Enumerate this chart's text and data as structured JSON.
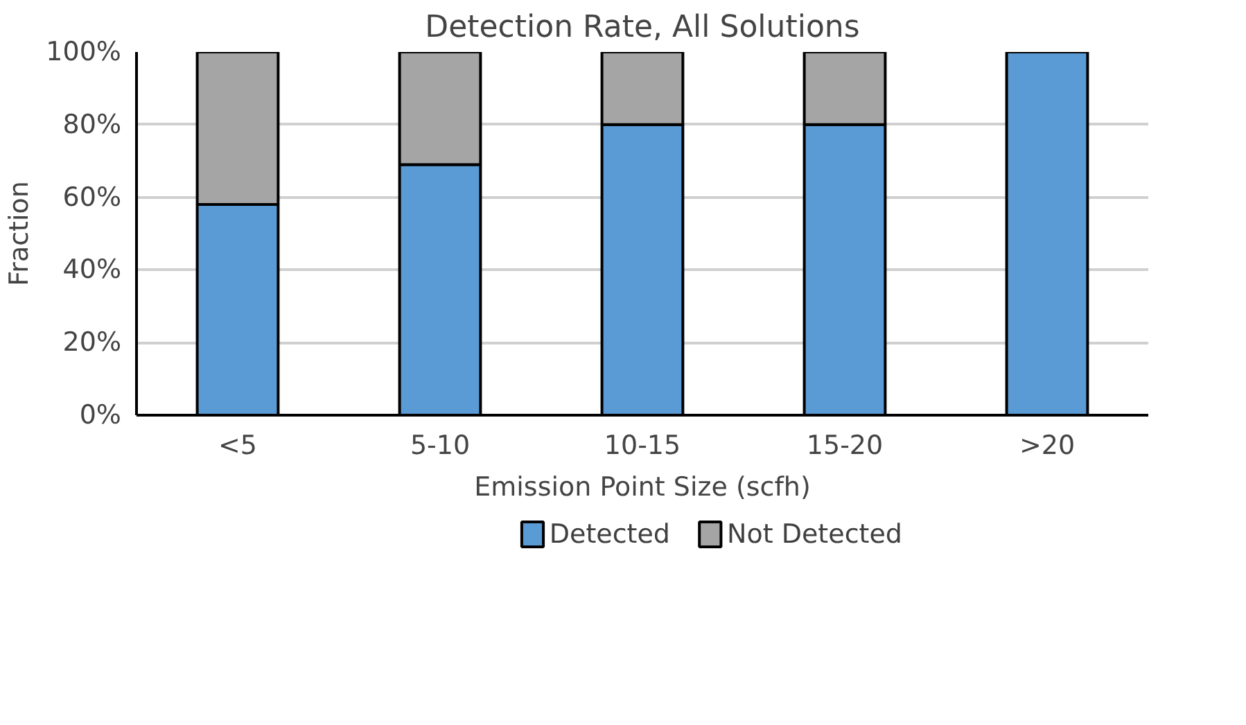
{
  "chart_data": {
    "type": "bar",
    "title": "Detection Rate, All Solutions",
    "xlabel": "Emission Point Size (scfh)",
    "ylabel": "Fraction",
    "categories": [
      "<5",
      "5-10",
      "10-15",
      "15-20",
      ">20"
    ],
    "stacked": true,
    "series": [
      {
        "name": "Detected",
        "color": "#5b9bd5",
        "values": [
          0.58,
          0.69,
          0.8,
          0.8,
          1.0
        ]
      },
      {
        "name": "Not Detected",
        "color": "#a5a5a5",
        "values": [
          0.42,
          0.31,
          0.2,
          0.2,
          0.0
        ]
      }
    ],
    "ylim": [
      0,
      1
    ],
    "yticks": [
      {
        "value": 0,
        "label": "0%"
      },
      {
        "value": 0.2,
        "label": "20%"
      },
      {
        "value": 0.4,
        "label": "40%"
      },
      {
        "value": 0.6,
        "label": "60%"
      },
      {
        "value": 0.8,
        "label": "80%"
      },
      {
        "value": 1.0,
        "label": "100%"
      }
    ],
    "grid": "y",
    "legend": "bottom"
  }
}
